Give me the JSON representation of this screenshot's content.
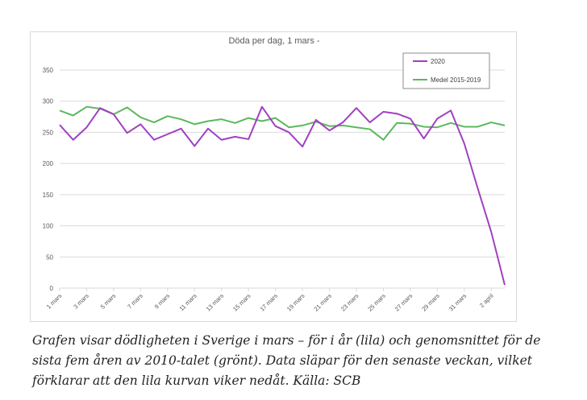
{
  "chart_data": {
    "type": "line",
    "title": "Döda per dag, 1 mars -",
    "xlabel": "",
    "ylabel": "",
    "ylim": [
      0,
      350
    ],
    "yticks": [
      0,
      50,
      100,
      150,
      200,
      250,
      300,
      350
    ],
    "grid": true,
    "legend_position": "top-right",
    "x": [
      "1 mars",
      "2 mars",
      "3 mars",
      "4 mars",
      "5 mars",
      "6 mars",
      "7 mars",
      "8 mars",
      "9 mars",
      "10 mars",
      "11 mars",
      "12 mars",
      "13 mars",
      "14 mars",
      "15 mars",
      "16 mars",
      "17 mars",
      "18 mars",
      "19 mars",
      "20 mars",
      "21 mars",
      "22 mars",
      "23 mars",
      "24 mars",
      "25 mars",
      "26 mars",
      "27 mars",
      "28 mars",
      "29 mars",
      "30 mars",
      "31 mars",
      "1 april",
      "2 april",
      "3 april"
    ],
    "x_tick_labels": [
      "1 mars",
      "3 mars",
      "5 mars",
      "7 mars",
      "9 mars",
      "11 mars",
      "13 mars",
      "15 mars",
      "17 mars",
      "19 mars",
      "21 mars",
      "23 mars",
      "25 mars",
      "27 mars",
      "29 mars",
      "31 mars",
      "2 april"
    ],
    "series": [
      {
        "name": "2020",
        "color": "#a040c0",
        "values": [
          262,
          238,
          258,
          289,
          279,
          249,
          263,
          238,
          247,
          256,
          228,
          256,
          238,
          243,
          239,
          291,
          260,
          250,
          227,
          270,
          253,
          266,
          289,
          266,
          283,
          280,
          272,
          240,
          272,
          285,
          232,
          160,
          90,
          5
        ]
      },
      {
        "name": "Medel 2015-2019",
        "color": "#5cb85c",
        "values": [
          285,
          277,
          291,
          288,
          279,
          290,
          274,
          266,
          276,
          271,
          263,
          268,
          271,
          265,
          273,
          268,
          273,
          258,
          261,
          267,
          260,
          261,
          258,
          255,
          238,
          265,
          264,
          259,
          258,
          265,
          259,
          259,
          266,
          261
        ]
      }
    ]
  },
  "caption": "Grafen visar dödligheten i Sverige i mars – för i år (lila) och genomsnittet för de sista fem åren av 2010-talet (grönt). Data släpar för den senaste veckan, vilket förklarar att den lila kurvan viker nedåt. Källa: SCB"
}
